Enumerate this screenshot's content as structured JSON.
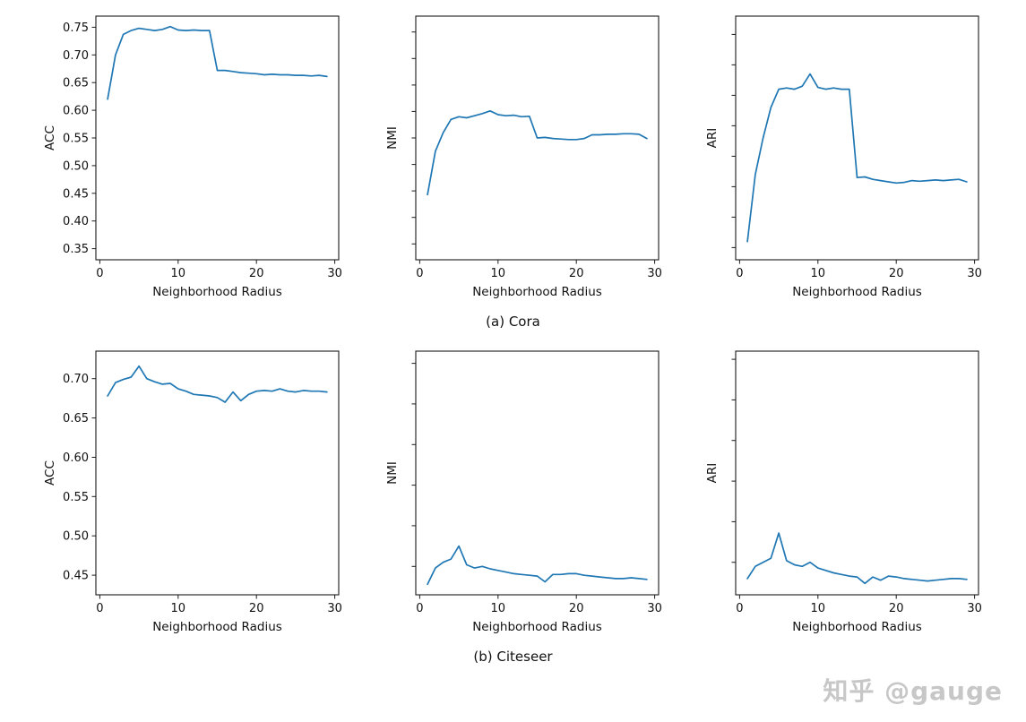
{
  "captions": {
    "a": "(a) Cora",
    "b": "(b) Citeseer"
  },
  "watermark": {
    "text": "知乎 @gauge"
  },
  "line_color": "#1f77b4",
  "chart_data": [
    {
      "type": "line",
      "dataset": "Cora",
      "metric": "ACC",
      "xlabel": "Neighborhood Radius",
      "ylabel": "ACC",
      "x": [
        1,
        2,
        3,
        4,
        5,
        6,
        7,
        8,
        9,
        10,
        11,
        12,
        13,
        14,
        15,
        16,
        17,
        18,
        19,
        20,
        21,
        22,
        23,
        24,
        25,
        26,
        27,
        28,
        29
      ],
      "y": [
        0.62,
        0.7,
        0.737,
        0.744,
        0.748,
        0.746,
        0.744,
        0.746,
        0.751,
        0.745,
        0.744,
        0.745,
        0.744,
        0.744,
        0.672,
        0.672,
        0.67,
        0.668,
        0.667,
        0.666,
        0.664,
        0.665,
        0.664,
        0.664,
        0.663,
        0.663,
        0.662,
        0.663,
        0.661
      ],
      "xlim": [
        -0.5,
        30.5
      ],
      "ylim": [
        0.33,
        0.77
      ],
      "xticks": [
        0,
        10,
        20,
        30
      ],
      "yticks": [
        0.35,
        0.4,
        0.45,
        0.5,
        0.55,
        0.6,
        0.65,
        0.7,
        0.75
      ],
      "ytick_labels_visible": true,
      "line_color": "#1f77b4",
      "grid": false,
      "legend": "none"
    },
    {
      "type": "line",
      "dataset": "Cora",
      "metric": "NMI",
      "xlabel": "Neighborhood Radius",
      "ylabel": "NMI",
      "x": [
        1,
        2,
        3,
        4,
        5,
        6,
        7,
        8,
        9,
        10,
        11,
        12,
        13,
        14,
        15,
        16,
        17,
        18,
        19,
        20,
        21,
        22,
        23,
        24,
        25,
        26,
        27,
        28,
        29
      ],
      "y": [
        0.443,
        0.525,
        0.56,
        0.585,
        0.59,
        0.588,
        0.592,
        0.596,
        0.601,
        0.594,
        0.592,
        0.593,
        0.59,
        0.591,
        0.55,
        0.551,
        0.549,
        0.548,
        0.547,
        0.547,
        0.549,
        0.556,
        0.556,
        0.557,
        0.557,
        0.558,
        0.558,
        0.557,
        0.549
      ],
      "xlim": [
        -0.5,
        30.5
      ],
      "ylim": [
        0.32,
        0.78
      ],
      "xticks": [
        0,
        10,
        20,
        30
      ],
      "yticks": [
        0.35,
        0.4,
        0.45,
        0.5,
        0.55,
        0.6,
        0.65,
        0.7,
        0.75
      ],
      "ytick_labels_visible": false,
      "line_color": "#1f77b4",
      "grid": false,
      "legend": "none"
    },
    {
      "type": "line",
      "dataset": "Cora",
      "metric": "ARI",
      "xlabel": "Neighborhood Radius",
      "ylabel": "ARI",
      "x": [
        1,
        2,
        3,
        4,
        5,
        6,
        7,
        8,
        9,
        10,
        11,
        12,
        13,
        14,
        15,
        16,
        17,
        18,
        19,
        20,
        21,
        22,
        23,
        24,
        25,
        26,
        27,
        28,
        29
      ],
      "y": [
        0.31,
        0.42,
        0.48,
        0.53,
        0.56,
        0.562,
        0.56,
        0.565,
        0.585,
        0.563,
        0.56,
        0.562,
        0.56,
        0.56,
        0.415,
        0.416,
        0.412,
        0.41,
        0.408,
        0.406,
        0.407,
        0.41,
        0.409,
        0.41,
        0.411,
        0.41,
        0.411,
        0.412,
        0.408
      ],
      "xlim": [
        -0.5,
        30.5
      ],
      "ylim": [
        0.28,
        0.68
      ],
      "xticks": [
        0,
        10,
        20,
        30
      ],
      "yticks": [
        0.3,
        0.35,
        0.4,
        0.45,
        0.5,
        0.55,
        0.6,
        0.65
      ],
      "ytick_labels_visible": false,
      "line_color": "#1f77b4",
      "grid": false,
      "legend": "none"
    },
    {
      "type": "line",
      "dataset": "Citeseer",
      "metric": "ACC",
      "xlabel": "Neighborhood Radius",
      "ylabel": "ACC",
      "x": [
        1,
        2,
        3,
        4,
        5,
        6,
        7,
        8,
        9,
        10,
        11,
        12,
        13,
        14,
        15,
        16,
        17,
        18,
        19,
        20,
        21,
        22,
        23,
        24,
        25,
        26,
        27,
        28,
        29
      ],
      "y": [
        0.678,
        0.695,
        0.699,
        0.702,
        0.716,
        0.7,
        0.696,
        0.693,
        0.694,
        0.687,
        0.684,
        0.68,
        0.679,
        0.678,
        0.676,
        0.67,
        0.683,
        0.672,
        0.68,
        0.684,
        0.685,
        0.684,
        0.687,
        0.684,
        0.683,
        0.685,
        0.684,
        0.684,
        0.683
      ],
      "xlim": [
        -0.5,
        30.5
      ],
      "ylim": [
        0.425,
        0.735
      ],
      "xticks": [
        0,
        10,
        20,
        30
      ],
      "yticks": [
        0.45,
        0.5,
        0.55,
        0.6,
        0.65,
        0.7
      ],
      "ytick_labels_visible": true,
      "line_color": "#1f77b4",
      "grid": false,
      "legend": "none"
    },
    {
      "type": "line",
      "dataset": "Citeseer",
      "metric": "NMI",
      "xlabel": "Neighborhood Radius",
      "ylabel": "NMI",
      "x": [
        1,
        2,
        3,
        4,
        5,
        6,
        7,
        8,
        9,
        10,
        11,
        12,
        13,
        14,
        15,
        16,
        17,
        18,
        19,
        20,
        21,
        22,
        23,
        24,
        25,
        26,
        27,
        28,
        29
      ],
      "y": [
        0.428,
        0.448,
        0.455,
        0.459,
        0.475,
        0.452,
        0.448,
        0.45,
        0.447,
        0.445,
        0.443,
        0.441,
        0.44,
        0.439,
        0.438,
        0.431,
        0.44,
        0.44,
        0.441,
        0.441,
        0.439,
        0.438,
        0.437,
        0.436,
        0.435,
        0.435,
        0.436,
        0.435,
        0.434
      ],
      "xlim": [
        -0.5,
        30.5
      ],
      "ylim": [
        0.415,
        0.715
      ],
      "xticks": [
        0,
        10,
        20,
        30
      ],
      "yticks": [
        0.45,
        0.5,
        0.55,
        0.6,
        0.65,
        0.7
      ],
      "ytick_labels_visible": false,
      "line_color": "#1f77b4",
      "grid": false,
      "legend": "none"
    },
    {
      "type": "line",
      "dataset": "Citeseer",
      "metric": "ARI",
      "xlabel": "Neighborhood Radius",
      "ylabel": "ARI",
      "x": [
        1,
        2,
        3,
        4,
        5,
        6,
        7,
        8,
        9,
        10,
        11,
        12,
        13,
        14,
        15,
        16,
        17,
        18,
        19,
        20,
        21,
        22,
        23,
        24,
        25,
        26,
        27,
        28,
        29
      ],
      "y": [
        0.43,
        0.445,
        0.45,
        0.455,
        0.486,
        0.452,
        0.447,
        0.445,
        0.45,
        0.443,
        0.44,
        0.437,
        0.435,
        0.433,
        0.432,
        0.424,
        0.432,
        0.428,
        0.433,
        0.432,
        0.43,
        0.429,
        0.428,
        0.427,
        0.428,
        0.429,
        0.43,
        0.43,
        0.429
      ],
      "xlim": [
        -0.5,
        30.5
      ],
      "ylim": [
        0.41,
        0.71
      ],
      "xticks": [
        0,
        10,
        20,
        30
      ],
      "yticks": [
        0.45,
        0.5,
        0.55,
        0.6,
        0.65,
        0.7
      ],
      "ytick_labels_visible": false,
      "line_color": "#1f77b4",
      "grid": false,
      "legend": "none"
    }
  ]
}
